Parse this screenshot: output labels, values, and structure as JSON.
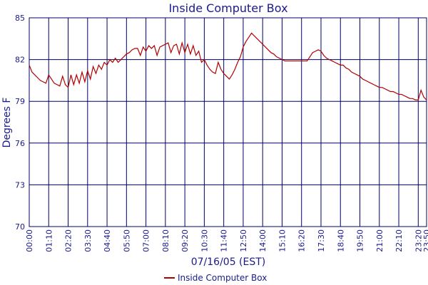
{
  "chart_data": {
    "type": "line",
    "title": "Inside Computer Box",
    "x_label": "07/16/05 (EST)",
    "y_label": "Degrees F",
    "x": [
      0,
      10,
      20,
      30,
      40,
      50,
      60,
      70,
      80,
      90,
      100,
      110,
      120,
      130,
      140,
      150,
      160,
      170,
      180,
      190,
      200,
      210,
      220,
      230,
      240,
      250,
      260,
      270,
      280,
      290,
      300,
      310,
      320,
      330,
      340,
      350,
      360,
      370,
      380,
      390,
      400,
      410,
      420,
      430,
      440,
      450,
      460,
      470,
      480,
      490,
      500,
      510,
      520,
      530,
      540,
      550,
      560,
      570,
      580,
      590,
      600,
      610,
      620,
      630,
      640,
      650,
      660,
      670,
      680,
      690,
      700,
      710,
      720,
      730,
      740,
      750,
      760,
      770,
      780,
      790,
      800,
      810,
      820,
      830,
      840,
      850,
      860,
      870,
      880,
      890,
      900,
      910,
      920,
      930,
      940,
      950,
      960,
      970,
      980,
      990,
      1000,
      1010,
      1020,
      1030,
      1040,
      1050,
      1060,
      1070,
      1080,
      1090,
      1100,
      1110,
      1120,
      1130,
      1140,
      1150,
      1160,
      1170,
      1180,
      1190,
      1200,
      1210,
      1220,
      1230,
      1240,
      1250,
      1260,
      1270,
      1280,
      1290,
      1300,
      1310,
      1320,
      1330,
      1340,
      1350,
      1360,
      1370,
      1380,
      1390,
      1400,
      1410,
      1420,
      1430
    ],
    "series": [
      {
        "name": "Inside Computer Box",
        "color": "#b00000",
        "values": [
          81.6,
          81.1,
          80.9,
          80.7,
          80.5,
          80.4,
          80.3,
          80.9,
          80.6,
          80.3,
          80.2,
          80.1,
          80.8,
          80.2,
          80.0,
          80.9,
          80.2,
          80.9,
          80.3,
          81.1,
          80.4,
          81.2,
          80.6,
          81.5,
          81.0,
          81.6,
          81.3,
          81.8,
          81.6,
          82.0,
          81.8,
          82.1,
          81.8,
          82.0,
          82.2,
          82.4,
          82.5,
          82.7,
          82.8,
          82.8,
          82.3,
          82.9,
          82.6,
          83.0,
          82.8,
          83.0,
          82.3,
          82.9,
          83.0,
          83.1,
          83.2,
          82.5,
          83.0,
          83.1,
          82.4,
          83.2,
          82.5,
          83.1,
          82.4,
          83.0,
          82.3,
          82.6,
          81.8,
          82.0,
          81.6,
          81.3,
          81.1,
          81.0,
          81.8,
          81.3,
          81.0,
          80.8,
          80.6,
          80.9,
          81.3,
          81.8,
          82.2,
          82.9,
          83.3,
          83.6,
          83.9,
          83.7,
          83.5,
          83.3,
          83.1,
          82.9,
          82.7,
          82.5,
          82.4,
          82.2,
          82.1,
          82.0,
          81.9,
          81.9,
          81.9,
          81.9,
          81.9,
          81.9,
          81.9,
          81.9,
          81.9,
          82.2,
          82.5,
          82.6,
          82.7,
          82.6,
          82.3,
          82.1,
          82.0,
          81.9,
          81.8,
          81.7,
          81.6,
          81.6,
          81.4,
          81.3,
          81.1,
          81.0,
          80.9,
          80.8,
          80.6,
          80.5,
          80.4,
          80.3,
          80.2,
          80.1,
          80.0,
          80.0,
          79.9,
          79.8,
          79.7,
          79.7,
          79.6,
          79.5,
          79.5,
          79.4,
          79.3,
          79.2,
          79.2,
          79.1,
          79.1,
          79.8,
          79.3,
          79.1
        ]
      }
    ],
    "xlim": [
      0,
      1430
    ],
    "xticks": [
      {
        "value": 0,
        "label": "00:00"
      },
      {
        "value": 70,
        "label": "01:10"
      },
      {
        "value": 140,
        "label": "02:20"
      },
      {
        "value": 210,
        "label": "03:30"
      },
      {
        "value": 280,
        "label": "04:40"
      },
      {
        "value": 350,
        "label": "05:50"
      },
      {
        "value": 420,
        "label": "07:00"
      },
      {
        "value": 490,
        "label": "08:10"
      },
      {
        "value": 560,
        "label": "09:20"
      },
      {
        "value": 630,
        "label": "10:30"
      },
      {
        "value": 700,
        "label": "11:40"
      },
      {
        "value": 770,
        "label": "12:50"
      },
      {
        "value": 840,
        "label": "14:00"
      },
      {
        "value": 910,
        "label": "15:10"
      },
      {
        "value": 980,
        "label": "16:20"
      },
      {
        "value": 1050,
        "label": "17:30"
      },
      {
        "value": 1120,
        "label": "18:40"
      },
      {
        "value": 1190,
        "label": "19:50"
      },
      {
        "value": 1260,
        "label": "21:00"
      },
      {
        "value": 1330,
        "label": "22:10"
      },
      {
        "value": 1400,
        "label": "23:20"
      },
      {
        "value": 1430,
        "label": "23:50"
      }
    ],
    "ylim": [
      70,
      85
    ],
    "yticks": [
      70,
      73,
      76,
      79,
      82,
      85
    ],
    "grid": true
  }
}
